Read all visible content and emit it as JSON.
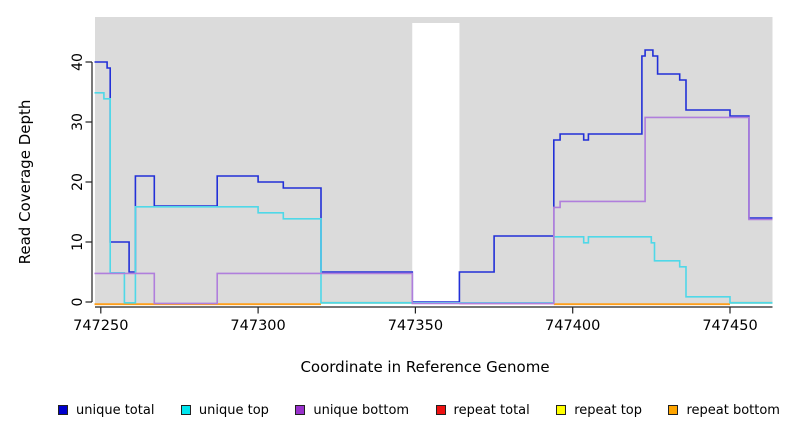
{
  "chart_data": {
    "type": "line",
    "step": "after",
    "title": "",
    "xlabel": "Coordinate in Reference Genome",
    "ylabel": "Read Coverage Depth",
    "xlim": [
      747248,
      747463.5
    ],
    "ylim": [
      0,
      47.5
    ],
    "xticks": [
      747250,
      747300,
      747350,
      747400,
      747450
    ],
    "yticks": [
      0,
      10,
      20,
      30,
      40
    ],
    "grid": false,
    "plot_background": "#dbdbdb",
    "masked_region": {
      "start": 747349,
      "end": 747364,
      "color": "#ffffff"
    },
    "series": [
      {
        "name": "unique total",
        "color": "#2230d8",
        "offset": 0,
        "points": [
          [
            747248,
            40
          ],
          [
            747252,
            39
          ],
          [
            747253,
            10
          ],
          [
            747259,
            5
          ],
          [
            747261,
            21
          ],
          [
            747267,
            16
          ],
          [
            747287,
            21
          ],
          [
            747300,
            20
          ],
          [
            747308,
            19
          ],
          [
            747320,
            5
          ],
          [
            747349,
            0
          ],
          [
            747364,
            5
          ],
          [
            747375,
            11
          ],
          [
            747394,
            27
          ],
          [
            747396,
            28
          ],
          [
            747403.5,
            27
          ],
          [
            747405,
            28
          ],
          [
            747422,
            41
          ],
          [
            747423,
            42
          ],
          [
            747425.5,
            41
          ],
          [
            747427,
            38
          ],
          [
            747434,
            37
          ],
          [
            747436,
            32
          ],
          [
            747450,
            31
          ],
          [
            747456,
            14
          ],
          [
            747463.5,
            14
          ]
        ]
      },
      {
        "name": "unique top",
        "color": "#4fd8e8",
        "offset": 0.8,
        "points": [
          [
            747248,
            35
          ],
          [
            747251,
            34
          ],
          [
            747253,
            5
          ],
          [
            747257.5,
            0
          ],
          [
            747261,
            16
          ],
          [
            747300,
            15
          ],
          [
            747308,
            14
          ],
          [
            747320,
            0
          ],
          [
            747394,
            11
          ],
          [
            747403.5,
            10
          ],
          [
            747405,
            11
          ],
          [
            747425,
            10
          ],
          [
            747426,
            7
          ],
          [
            747434,
            6
          ],
          [
            747436,
            1
          ],
          [
            747450,
            0
          ],
          [
            747463.5,
            0
          ]
        ]
      },
      {
        "name": "unique bottom",
        "color": "#b07edc",
        "offset": 1.4,
        "points": [
          [
            747248,
            5
          ],
          [
            747267,
            0
          ],
          [
            747287,
            5
          ],
          [
            747349,
            0
          ],
          [
            747394,
            16
          ],
          [
            747396,
            17
          ],
          [
            747423,
            31
          ],
          [
            747456,
            14
          ],
          [
            747463.5,
            14
          ]
        ]
      }
    ],
    "zero_line_segments": [
      {
        "name": "repeat-zero-orange-left",
        "color": "#ff9f1a",
        "offset": 2.2,
        "from": 747248,
        "to": 747320
      },
      {
        "name": "zero-green-left",
        "color": "#7cc47c",
        "offset": 0.8,
        "from": 747320,
        "to": 747349
      },
      {
        "name": "repeat-total-zero-crimson",
        "color": "#cc3a66",
        "offset": 1.4,
        "from": 747364,
        "to": 747394
      },
      {
        "name": "repeat-zero-orange-right",
        "color": "#ff9f1a",
        "offset": 2.2,
        "from": 747394,
        "to": 747450
      },
      {
        "name": "zero-green-right",
        "color": "#7cc47c",
        "offset": 0.8,
        "from": 747450,
        "to": 747463.5
      }
    ]
  },
  "legend": {
    "items": [
      {
        "label": "unique total",
        "color": "#0000cd"
      },
      {
        "label": "unique top",
        "color": "#00e5ee"
      },
      {
        "label": "unique bottom",
        "color": "#9932cc"
      },
      {
        "label": "repeat total",
        "color": "#ee1111"
      },
      {
        "label": "repeat top",
        "color": "#ffff00"
      },
      {
        "label": "repeat bottom",
        "color": "#ffa500"
      }
    ]
  }
}
